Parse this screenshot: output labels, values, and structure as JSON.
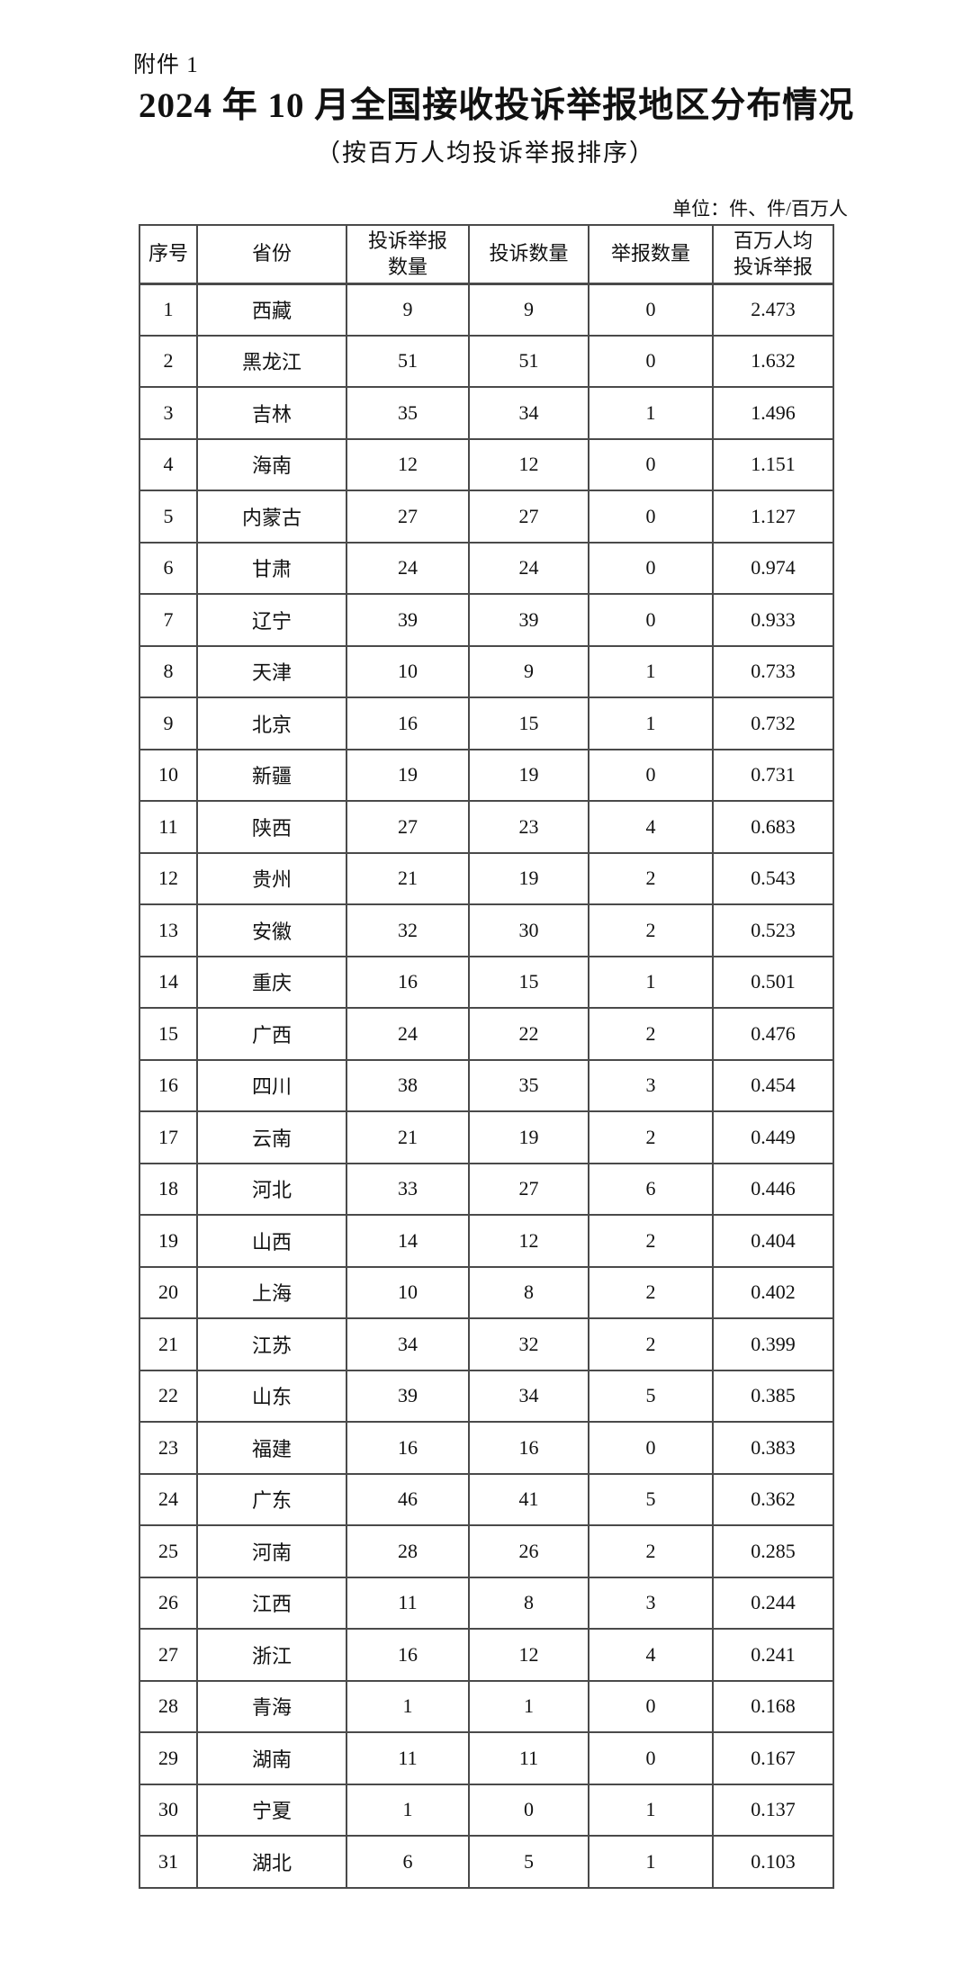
{
  "page": {
    "attachment_label": "附件 1",
    "title": "2024 年 10 月全国接收投诉举报地区分布情况",
    "subtitle": "（按百万人均投诉举报排序）",
    "unit_note": "单位：件、件/百万人"
  },
  "colors": {
    "background": "#ffffff",
    "text": "#111111",
    "table_border": "#4a4a4a"
  },
  "table": {
    "headers": [
      "序号",
      "省份",
      "投诉举报\n数量",
      "投诉数量",
      "举报数量",
      "百万人均\n投诉举报"
    ],
    "rows": [
      {
        "no": "1",
        "province": "西藏",
        "total": "9",
        "complaints": "9",
        "reports": "0",
        "per_million": "2.473"
      },
      {
        "no": "2",
        "province": "黑龙江",
        "total": "51",
        "complaints": "51",
        "reports": "0",
        "per_million": "1.632"
      },
      {
        "no": "3",
        "province": "吉林",
        "total": "35",
        "complaints": "34",
        "reports": "1",
        "per_million": "1.496"
      },
      {
        "no": "4",
        "province": "海南",
        "total": "12",
        "complaints": "12",
        "reports": "0",
        "per_million": "1.151"
      },
      {
        "no": "5",
        "province": "内蒙古",
        "total": "27",
        "complaints": "27",
        "reports": "0",
        "per_million": "1.127"
      },
      {
        "no": "6",
        "province": "甘肃",
        "total": "24",
        "complaints": "24",
        "reports": "0",
        "per_million": "0.974"
      },
      {
        "no": "7",
        "province": "辽宁",
        "total": "39",
        "complaints": "39",
        "reports": "0",
        "per_million": "0.933"
      },
      {
        "no": "8",
        "province": "天津",
        "total": "10",
        "complaints": "9",
        "reports": "1",
        "per_million": "0.733"
      },
      {
        "no": "9",
        "province": "北京",
        "total": "16",
        "complaints": "15",
        "reports": "1",
        "per_million": "0.732"
      },
      {
        "no": "10",
        "province": "新疆",
        "total": "19",
        "complaints": "19",
        "reports": "0",
        "per_million": "0.731"
      },
      {
        "no": "11",
        "province": "陕西",
        "total": "27",
        "complaints": "23",
        "reports": "4",
        "per_million": "0.683"
      },
      {
        "no": "12",
        "province": "贵州",
        "total": "21",
        "complaints": "19",
        "reports": "2",
        "per_million": "0.543"
      },
      {
        "no": "13",
        "province": "安徽",
        "total": "32",
        "complaints": "30",
        "reports": "2",
        "per_million": "0.523"
      },
      {
        "no": "14",
        "province": "重庆",
        "total": "16",
        "complaints": "15",
        "reports": "1",
        "per_million": "0.501"
      },
      {
        "no": "15",
        "province": "广西",
        "total": "24",
        "complaints": "22",
        "reports": "2",
        "per_million": "0.476"
      },
      {
        "no": "16",
        "province": "四川",
        "total": "38",
        "complaints": "35",
        "reports": "3",
        "per_million": "0.454"
      },
      {
        "no": "17",
        "province": "云南",
        "total": "21",
        "complaints": "19",
        "reports": "2",
        "per_million": "0.449"
      },
      {
        "no": "18",
        "province": "河北",
        "total": "33",
        "complaints": "27",
        "reports": "6",
        "per_million": "0.446"
      },
      {
        "no": "19",
        "province": "山西",
        "total": "14",
        "complaints": "12",
        "reports": "2",
        "per_million": "0.404"
      },
      {
        "no": "20",
        "province": "上海",
        "total": "10",
        "complaints": "8",
        "reports": "2",
        "per_million": "0.402"
      },
      {
        "no": "21",
        "province": "江苏",
        "total": "34",
        "complaints": "32",
        "reports": "2",
        "per_million": "0.399"
      },
      {
        "no": "22",
        "province": "山东",
        "total": "39",
        "complaints": "34",
        "reports": "5",
        "per_million": "0.385"
      },
      {
        "no": "23",
        "province": "福建",
        "total": "16",
        "complaints": "16",
        "reports": "0",
        "per_million": "0.383"
      },
      {
        "no": "24",
        "province": "广东",
        "total": "46",
        "complaints": "41",
        "reports": "5",
        "per_million": "0.362"
      },
      {
        "no": "25",
        "province": "河南",
        "total": "28",
        "complaints": "26",
        "reports": "2",
        "per_million": "0.285"
      },
      {
        "no": "26",
        "province": "江西",
        "total": "11",
        "complaints": "8",
        "reports": "3",
        "per_million": "0.244"
      },
      {
        "no": "27",
        "province": "浙江",
        "total": "16",
        "complaints": "12",
        "reports": "4",
        "per_million": "0.241"
      },
      {
        "no": "28",
        "province": "青海",
        "total": "1",
        "complaints": "1",
        "reports": "0",
        "per_million": "0.168"
      },
      {
        "no": "29",
        "province": "湖南",
        "total": "11",
        "complaints": "11",
        "reports": "0",
        "per_million": "0.167"
      },
      {
        "no": "30",
        "province": "宁夏",
        "total": "1",
        "complaints": "0",
        "reports": "1",
        "per_million": "0.137"
      },
      {
        "no": "31",
        "province": "湖北",
        "total": "6",
        "complaints": "5",
        "reports": "1",
        "per_million": "0.103"
      }
    ]
  }
}
